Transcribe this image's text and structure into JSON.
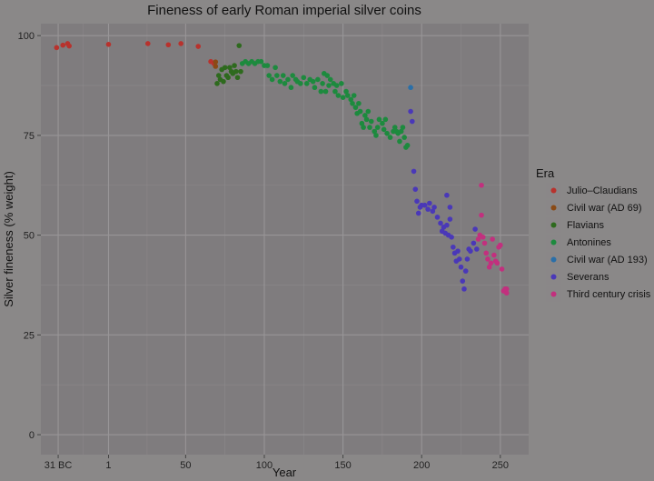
{
  "chart_data": {
    "type": "scatter",
    "title": "Fineness of early Roman imperial silver coins",
    "xlabel": "Year",
    "ylabel": "Silver fineness (% weight)",
    "xlim": [
      -42,
      268
    ],
    "ylim": [
      -5,
      103
    ],
    "x_ticks": [
      {
        "value": -31,
        "label": "31 BC"
      },
      {
        "value": 1,
        "label": "1"
      },
      {
        "value": 50,
        "label": "50"
      },
      {
        "value": 100,
        "label": "100"
      },
      {
        "value": 150,
        "label": "150"
      },
      {
        "value": 200,
        "label": "200"
      },
      {
        "value": 250,
        "label": "250"
      }
    ],
    "y_ticks": [
      0,
      25,
      50,
      75,
      100
    ],
    "grid": true,
    "legend_title": "Era",
    "legend_position": "right",
    "series": [
      {
        "name": "Julio–Claudians",
        "color": "#b8322d",
        "points": [
          [
            -32,
            97
          ],
          [
            -28,
            97.6
          ],
          [
            -25,
            98
          ],
          [
            -24,
            97.4
          ],
          [
            1,
            97.8
          ],
          [
            26,
            98
          ],
          [
            39,
            97.7
          ],
          [
            47,
            98
          ],
          [
            58,
            97.3
          ],
          [
            66,
            93.5
          ],
          [
            68,
            93
          ]
        ]
      },
      {
        "name": "Civil war (AD 69)",
        "color": "#8a4a16",
        "points": [
          [
            69,
            93.4
          ],
          [
            69,
            92.3
          ]
        ]
      },
      {
        "name": "Flavians",
        "color": "#2e6a1e",
        "points": [
          [
            70,
            88
          ],
          [
            71,
            90
          ],
          [
            72,
            89
          ],
          [
            73,
            91.5
          ],
          [
            74,
            88.5
          ],
          [
            75,
            92
          ],
          [
            76,
            90
          ],
          [
            77,
            89.5
          ],
          [
            78,
            92
          ],
          [
            79,
            91
          ],
          [
            80,
            90.5
          ],
          [
            81,
            92.5
          ],
          [
            82,
            91
          ],
          [
            83,
            89.5
          ],
          [
            84,
            97.5
          ],
          [
            85,
            91
          ]
        ]
      },
      {
        "name": "Antonines",
        "color": "#1d8a3e",
        "points": [
          [
            86,
            93
          ],
          [
            88,
            93.5
          ],
          [
            90,
            93
          ],
          [
            92,
            93.5
          ],
          [
            94,
            93
          ],
          [
            96,
            93.5
          ],
          [
            98,
            93.5
          ],
          [
            100,
            92.5
          ],
          [
            102,
            92.5
          ],
          [
            103,
            90
          ],
          [
            105,
            89
          ],
          [
            107,
            92
          ],
          [
            108,
            90
          ],
          [
            110,
            88.5
          ],
          [
            112,
            90
          ],
          [
            113,
            88
          ],
          [
            115,
            89
          ],
          [
            117,
            87
          ],
          [
            118,
            90
          ],
          [
            120,
            89
          ],
          [
            121,
            88.5
          ],
          [
            123,
            88
          ],
          [
            125,
            89.5
          ],
          [
            127,
            88
          ],
          [
            129,
            89
          ],
          [
            131,
            88.5
          ],
          [
            132,
            87
          ],
          [
            134,
            89
          ],
          [
            136,
            86
          ],
          [
            137,
            88
          ],
          [
            138,
            90.5
          ],
          [
            139,
            86
          ],
          [
            140,
            90
          ],
          [
            141,
            87.5
          ],
          [
            142,
            89
          ],
          [
            144,
            88
          ],
          [
            145,
            86
          ],
          [
            146,
            87.5
          ],
          [
            147,
            85
          ],
          [
            149,
            88
          ],
          [
            150,
            84.5
          ],
          [
            152,
            86
          ],
          [
            153,
            85
          ],
          [
            155,
            84
          ],
          [
            156,
            83
          ],
          [
            157,
            85
          ],
          [
            158,
            82
          ],
          [
            159,
            80.5
          ],
          [
            160,
            83
          ],
          [
            161,
            81
          ],
          [
            162,
            78
          ],
          [
            163,
            77
          ],
          [
            164,
            80
          ],
          [
            165,
            79
          ],
          [
            166,
            81
          ],
          [
            167,
            77
          ],
          [
            168,
            78.5
          ],
          [
            170,
            76
          ],
          [
            171,
            75
          ],
          [
            172,
            77
          ],
          [
            173,
            79
          ],
          [
            175,
            78
          ],
          [
            176,
            76.5
          ],
          [
            177,
            79
          ],
          [
            178,
            75.5
          ],
          [
            180,
            74.5
          ],
          [
            182,
            76
          ],
          [
            183,
            77
          ],
          [
            184,
            76
          ],
          [
            185,
            75.5
          ],
          [
            186,
            73.5
          ],
          [
            187,
            76
          ],
          [
            188,
            77
          ],
          [
            189,
            74.5
          ],
          [
            190,
            72
          ],
          [
            191,
            72.5
          ]
        ]
      },
      {
        "name": "Civil war (AD 193)",
        "color": "#2a6fa8",
        "points": [
          [
            193,
            87
          ]
        ]
      },
      {
        "name": "Severans",
        "color": "#4a38b8",
        "points": [
          [
            193,
            81
          ],
          [
            194,
            78.5
          ],
          [
            195,
            66
          ],
          [
            196,
            61.5
          ],
          [
            197,
            58.5
          ],
          [
            198,
            55.5
          ],
          [
            199,
            57
          ],
          [
            200,
            57.5
          ],
          [
            202,
            57.5
          ],
          [
            204,
            56.5
          ],
          [
            205,
            58
          ],
          [
            207,
            56
          ],
          [
            208,
            57
          ],
          [
            210,
            54.5
          ],
          [
            212,
            53
          ],
          [
            213,
            51
          ],
          [
            214,
            52
          ],
          [
            215,
            50.5
          ],
          [
            216,
            52.5
          ],
          [
            217,
            50
          ],
          [
            218,
            54
          ],
          [
            219,
            49.5
          ],
          [
            220,
            47
          ],
          [
            221,
            45.5
          ],
          [
            222,
            43.5
          ],
          [
            223,
            46
          ],
          [
            224,
            44
          ],
          [
            225,
            42
          ],
          [
            226,
            38.5
          ],
          [
            227,
            36.5
          ],
          [
            228,
            41
          ],
          [
            229,
            44
          ],
          [
            230,
            46.5
          ],
          [
            231,
            46
          ],
          [
            233,
            48
          ],
          [
            234,
            51.5
          ],
          [
            235,
            46.5
          ],
          [
            216,
            60
          ],
          [
            218,
            57
          ]
        ]
      },
      {
        "name": "Third century crisis",
        "color": "#c2307e",
        "points": [
          [
            236,
            49
          ],
          [
            237,
            50
          ],
          [
            238,
            62.5
          ],
          [
            238,
            55
          ],
          [
            239,
            49.5
          ],
          [
            240,
            48
          ],
          [
            241,
            45.5
          ],
          [
            242,
            44
          ],
          [
            243,
            42
          ],
          [
            244,
            43
          ],
          [
            245,
            49
          ],
          [
            246,
            45
          ],
          [
            247,
            43.5
          ],
          [
            248,
            43
          ],
          [
            249,
            47
          ],
          [
            250,
            47.5
          ],
          [
            251,
            41.5
          ],
          [
            252,
            36
          ],
          [
            253,
            36.5
          ],
          [
            254,
            35.5
          ],
          [
            254,
            36.5
          ]
        ]
      }
    ]
  }
}
